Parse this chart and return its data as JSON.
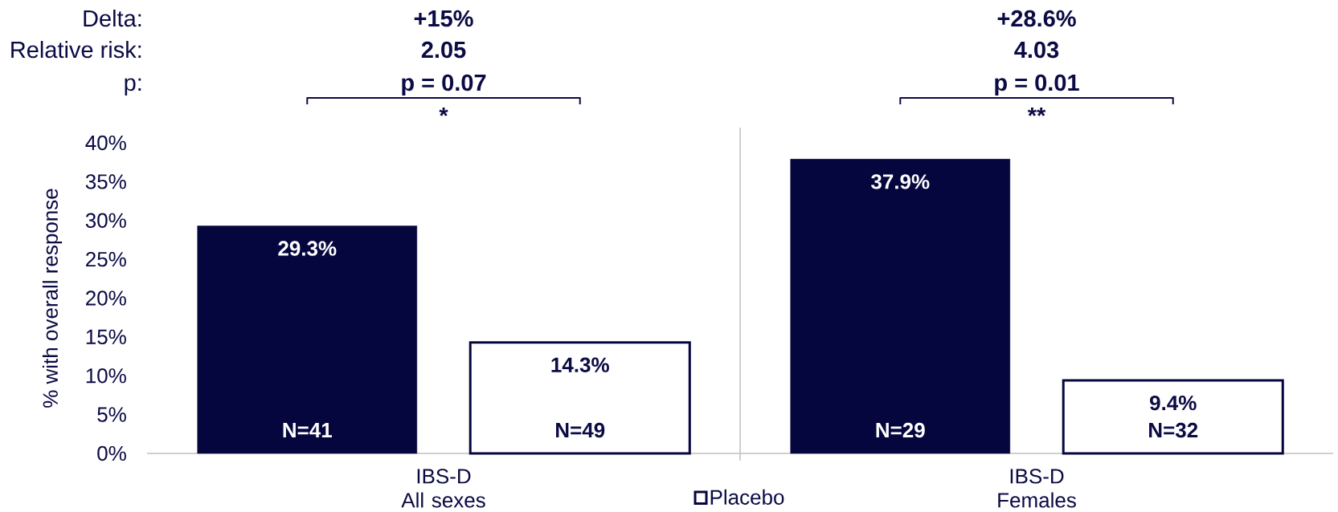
{
  "chart_data": {
    "type": "bar",
    "categories": [
      "IBS-D All sexes",
      "IBS-D Females"
    ],
    "series": [
      {
        "color": "#06063f",
        "values": [
          29.3,
          37.9
        ],
        "value_labels": [
          "29.3%",
          "37.9%"
        ]
      },
      {
        "name": "Placebo",
        "color": "#ffffff",
        "values": [
          14.3,
          9.4
        ],
        "value_labels": [
          "14.3%",
          "9.4%"
        ]
      }
    ],
    "ylabel": "% with overall response",
    "ylim": [
      0,
      40
    ],
    "yticks": [
      {
        "value": 0,
        "label": "0%"
      },
      {
        "value": 5,
        "label": "5%"
      },
      {
        "value": 10,
        "label": "10%"
      },
      {
        "value": 15,
        "label": "15%"
      },
      {
        "value": 20,
        "label": "20%"
      },
      {
        "value": 25,
        "label": "25%"
      },
      {
        "value": 30,
        "label": "30%"
      },
      {
        "value": 35,
        "label": "35%"
      },
      {
        "value": 40,
        "label": "40%"
      }
    ],
    "legend": "bottom",
    "annotations": [
      "Delta:",
      "Relative risk:",
      "p:",
      "+15%",
      "2.05",
      "p = 0.07",
      "*",
      "+28.6%",
      "4.03",
      "p = 0.01",
      "**",
      "N=41",
      "N=49",
      "N=29",
      "N=32"
    ]
  }
}
